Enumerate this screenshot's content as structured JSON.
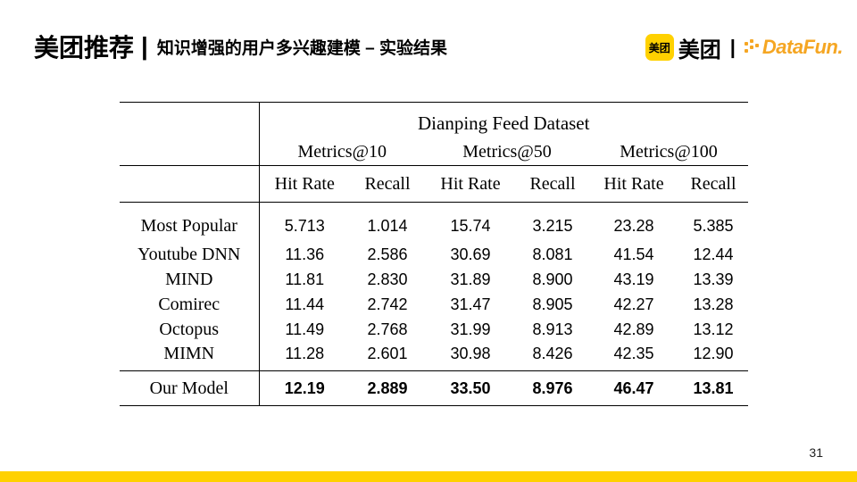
{
  "header": {
    "title": "美团推荐",
    "separator": "|",
    "subtitle": "知识增强的用户多兴趣建模 – 实验结果"
  },
  "logo": {
    "badge": "美团",
    "brand": "美团",
    "separator": "|",
    "partner": "DataFun.",
    "partner_color": "#F5A623",
    "badge_color": "#FFD100"
  },
  "table": {
    "dataset": "Dianping Feed Dataset",
    "metric_groups": [
      "Metrics@10",
      "Metrics@50",
      "Metrics@100"
    ],
    "columns": [
      "Hit Rate",
      "Recall",
      "Hit Rate",
      "Recall",
      "Hit Rate",
      "Recall"
    ],
    "rows": [
      {
        "model": "Most Popular",
        "values": [
          "5.713",
          "1.014",
          "15.74",
          "3.215",
          "23.28",
          "5.385"
        ]
      },
      {
        "model": "Youtube DNN",
        "values": [
          "11.36",
          "2.586",
          "30.69",
          "8.081",
          "41.54",
          "12.44"
        ]
      },
      {
        "model": "MIND",
        "values": [
          "11.81",
          "2.830",
          "31.89",
          "8.900",
          "43.19",
          "13.39"
        ]
      },
      {
        "model": "Comirec",
        "values": [
          "11.44",
          "2.742",
          "31.47",
          "8.905",
          "42.27",
          "13.28"
        ]
      },
      {
        "model": "Octopus",
        "values": [
          "11.49",
          "2.768",
          "31.99",
          "8.913",
          "42.89",
          "13.12"
        ]
      },
      {
        "model": "MIMN",
        "values": [
          "11.28",
          "2.601",
          "30.98",
          "8.426",
          "42.35",
          "12.90"
        ]
      }
    ],
    "ours": {
      "model": "Our Model",
      "values": [
        "12.19",
        "2.889",
        "33.50",
        "8.976",
        "46.47",
        "13.81"
      ]
    }
  },
  "page_number": "31",
  "footer_bar_color": "#FFD100"
}
